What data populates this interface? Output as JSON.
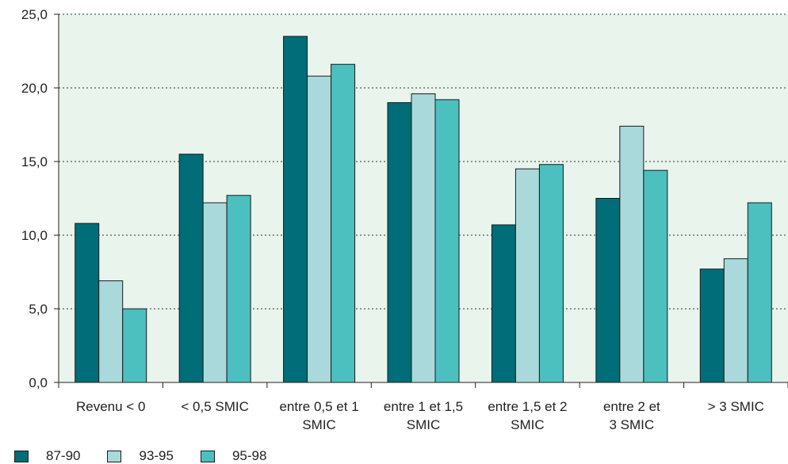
{
  "chart_data": {
    "type": "bar",
    "categories": [
      [
        "Revenu < 0"
      ],
      [
        "< 0,5 SMIC"
      ],
      [
        "entre 0,5 et 1",
        "SMIC"
      ],
      [
        "entre 1 et 1,5",
        "SMIC"
      ],
      [
        "entre 1,5 et 2",
        "SMIC"
      ],
      [
        "entre 2 et",
        "3 SMIC"
      ],
      [
        "> 3 SMIC"
      ]
    ],
    "series": [
      {
        "name": "87-90",
        "color": "#006d78",
        "values": [
          10.8,
          15.5,
          23.5,
          19.0,
          10.7,
          12.5,
          7.7
        ]
      },
      {
        "name": "93-95",
        "color": "#aad9db",
        "values": [
          6.9,
          12.2,
          20.8,
          19.6,
          14.5,
          17.4,
          8.4
        ]
      },
      {
        "name": "95-98",
        "color": "#4cbfbf",
        "values": [
          5.0,
          12.7,
          21.6,
          19.2,
          14.8,
          14.4,
          12.2
        ]
      }
    ],
    "ylim": [
      0,
      25
    ],
    "yticks": [
      "0,0",
      "5,0",
      "10,0",
      "15,0",
      "20,0",
      "25,0"
    ],
    "grid": true,
    "plot_background": "#e8f4ec",
    "legend_position": "bottom-left"
  }
}
